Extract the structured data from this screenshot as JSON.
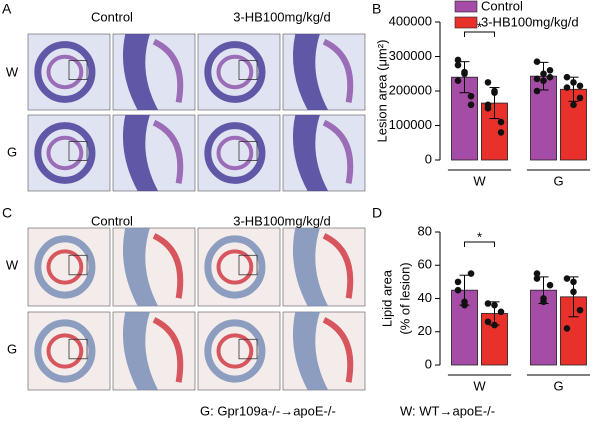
{
  "figure": {
    "panels": [
      "A",
      "B",
      "C",
      "D"
    ],
    "headers": [
      "Control",
      "3-HB100mg/kg/d",
      "Control",
      "3-HB100mg/kg/d"
    ],
    "rows": [
      "W",
      "G",
      "W",
      "G"
    ],
    "footnotes": [
      "G: Gpr109a-/-→apoE-/-",
      "W: WT→apoE-/-"
    ]
  },
  "chart_data": [
    {
      "type": "bar",
      "ylabel": [
        "Lesion area (μm²)"
      ],
      "categories": [
        "W",
        "G"
      ],
      "series": [
        {
          "name": "Control",
          "color": "#a54ca6",
          "values": [
            240000,
            243000
          ],
          "errors": [
            45000,
            40000
          ],
          "points": [
            [
              275000,
              250000,
              185000,
              290000,
              255000,
              160000,
              230000
            ],
            [
              285000,
              230000,
              260000,
              200000,
              250000,
              240000,
              235000
            ]
          ]
        },
        {
          "name": "3-HB100mg/kg/d",
          "color": "#e8312a",
          "values": [
            165000,
            205000
          ],
          "errors": [
            45000,
            35000
          ],
          "points": [
            [
              225000,
              200000,
              110000,
              150000,
              195000,
              80000,
              160000
            ],
            [
              240000,
              225000,
              180000,
              210000,
              160000,
              215000
            ]
          ]
        }
      ],
      "ylim": [
        0,
        400000
      ],
      "yticks": [
        0,
        100000,
        200000,
        300000,
        400000
      ],
      "significance": "*",
      "legend": "top"
    },
    {
      "type": "bar",
      "ylabel": [
        "Lipid area",
        "(% of lesion)"
      ],
      "categories": [
        "W",
        "G"
      ],
      "series": [
        {
          "name": "Control",
          "color": "#a54ca6",
          "values": [
            45,
            45
          ],
          "errors": [
            9,
            8
          ],
          "points": [
            [
              50,
              38,
              55,
              45,
              36
            ],
            [
              52,
              40,
              48,
              55,
              38
            ]
          ]
        },
        {
          "name": "3-HB100mg/kg/d",
          "color": "#e8312a",
          "values": [
            31,
            41
          ],
          "errors": [
            7,
            12
          ],
          "points": [
            [
              37,
              24,
              32,
              26,
              36
            ],
            [
              52,
              44,
              33,
              22,
              50
            ]
          ]
        }
      ],
      "ylim": [
        0,
        80
      ],
      "yticks": [
        0,
        20,
        40,
        60,
        80
      ],
      "significance": "*"
    }
  ]
}
